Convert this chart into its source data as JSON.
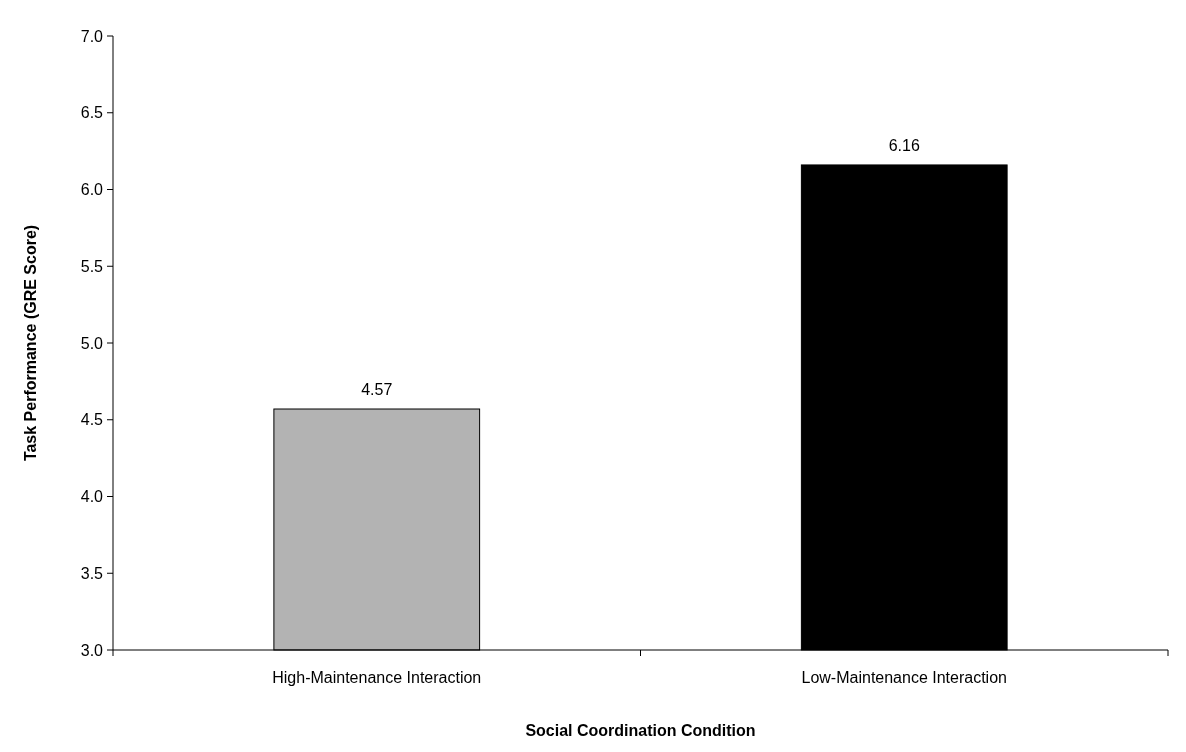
{
  "chart_data": {
    "type": "bar",
    "xlabel": "Social Coordination Condition",
    "ylabel": "Task Performance (GRE Score)",
    "categories": [
      "High-Maintenance Interaction",
      "Low-Maintenance Interaction"
    ],
    "values": [
      4.57,
      6.16
    ],
    "colors": [
      "#b3b3b3",
      "#000000"
    ],
    "ylim": [
      3.0,
      7.0
    ],
    "yticks": [
      {
        "value": 3,
        "label": "3.0"
      },
      {
        "value": 3.5,
        "label": "3.5"
      },
      {
        "value": 4,
        "label": "4.0"
      },
      {
        "value": 4.5,
        "label": "4.5"
      },
      {
        "value": 5,
        "label": "5.0"
      },
      {
        "value": 5.5,
        "label": "5.5"
      },
      {
        "value": 6,
        "label": "6.0"
      },
      {
        "value": 6.5,
        "label": "6.5"
      },
      {
        "value": 7,
        "label": "7.0"
      }
    ],
    "data_labels": true,
    "grid": false
  }
}
